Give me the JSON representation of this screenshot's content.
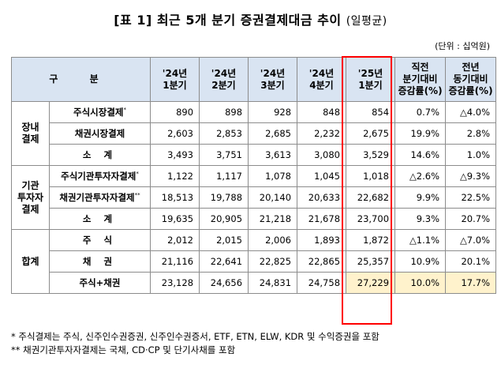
{
  "title": {
    "main": "[표 1] 최근 5개 분기 증권결제대금 추이",
    "sub": "(일평균)"
  },
  "unit": "(단위 : 십억원)",
  "headers": {
    "gu": "구 분",
    "q1": "'24년\n1분기",
    "q2": "'24년\n2분기",
    "q3": "'24년\n3분기",
    "q4": "'24년\n4분기",
    "q5": "'25년\n1분기",
    "qoq": "직전\n분기대비\n증감률(%)",
    "yoy": "전년\n동기대비\n증감률(%)"
  },
  "sections": {
    "s1": "장내\n결제",
    "s2": "기관\n투자자\n결제",
    "s3": "합계"
  },
  "rows": [
    {
      "label": "주식시장결제",
      "mark": "*",
      "values": [
        "890",
        "898",
        "928",
        "848",
        "854"
      ],
      "qoq": "0.7%",
      "yoy": "△4.0%"
    },
    {
      "label": "채권시장결제",
      "mark": "",
      "values": [
        "2,603",
        "2,853",
        "2,685",
        "2,232",
        "2,675"
      ],
      "qoq": "19.9%",
      "yoy": "2.8%"
    },
    {
      "label": "소 계",
      "mark": "",
      "values": [
        "3,493",
        "3,751",
        "3,613",
        "3,080",
        "3,529"
      ],
      "qoq": "14.6%",
      "yoy": "1.0%"
    },
    {
      "label": "주식기관투자자결제",
      "mark": "*",
      "values": [
        "1,122",
        "1,117",
        "1,078",
        "1,045",
        "1,018"
      ],
      "qoq": "△2.6%",
      "yoy": "△9.3%"
    },
    {
      "label": "채권기관투자자결제",
      "mark": "**",
      "values": [
        "18,513",
        "19,788",
        "20,140",
        "20,633",
        "22,682"
      ],
      "qoq": "9.9%",
      "yoy": "22.5%"
    },
    {
      "label": "소 계",
      "mark": "",
      "values": [
        "19,635",
        "20,905",
        "21,218",
        "21,678",
        "23,700"
      ],
      "qoq": "9.3%",
      "yoy": "20.7%"
    },
    {
      "label": "주 식",
      "mark": "",
      "values": [
        "2,012",
        "2,015",
        "2,006",
        "1,893",
        "1,872"
      ],
      "qoq": "△1.1%",
      "yoy": "△7.0%"
    },
    {
      "label": "채 권",
      "mark": "",
      "values": [
        "21,116",
        "22,641",
        "22,825",
        "22,865",
        "25,357"
      ],
      "qoq": "10.9%",
      "yoy": "20.1%"
    },
    {
      "label": "주식+채권",
      "mark": "",
      "values": [
        "23,128",
        "24,656",
        "24,831",
        "24,758",
        "27,229"
      ],
      "qoq": "10.0%",
      "yoy": "17.7%"
    }
  ],
  "notes": [
    "* 주식결제는 주식, 신주인수권증권, 신주인수권증서, ETF, ETN, ELW, KDR 및 수익증권을 포함",
    "** 채권기관투자자결제는 국채, CD·CP 및 단기사채를 포함"
  ]
}
